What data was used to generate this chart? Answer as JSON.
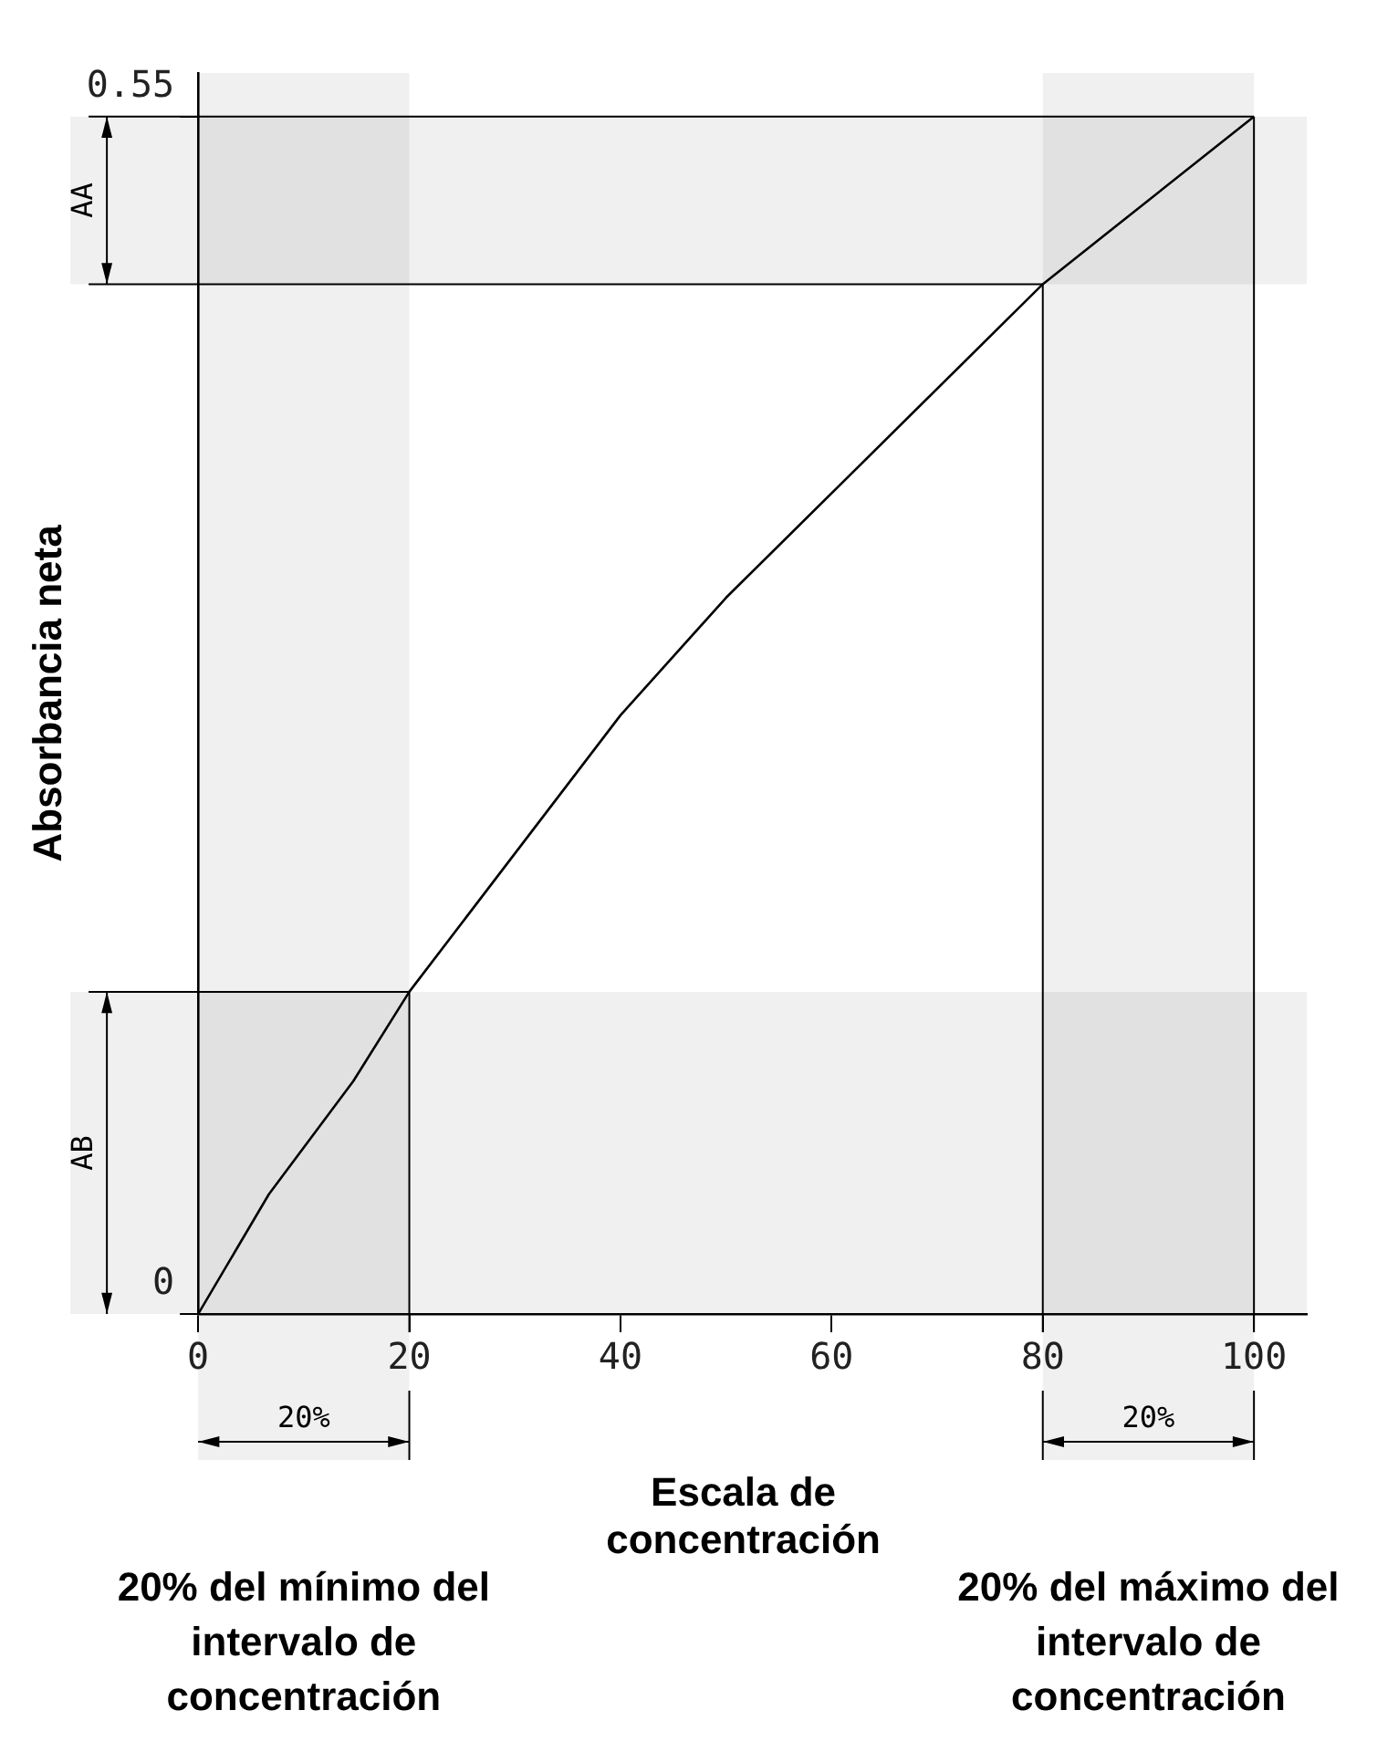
{
  "chart_data": {
    "type": "line",
    "xlabel": "Escala de concentración",
    "ylabel": "Absorbancia neta",
    "x": [
      0,
      6.7,
      14.7,
      20,
      40,
      50,
      80,
      100
    ],
    "series": [
      {
        "color": "#000000",
        "values": [
          0,
          0.055,
          0.107,
          0.148,
          0.275,
          0.329,
          0.473,
          0.55
        ]
      }
    ],
    "xlim": [
      0,
      105
    ],
    "ylim": [
      0,
      0.57
    ],
    "xticks": [
      0,
      20,
      40,
      60,
      80,
      100
    ],
    "yticks": [
      0,
      0.55
    ],
    "grid": false,
    "legend": false,
    "marker": "none",
    "line_style": "solid",
    "ref_lines": [
      {
        "axis": "y",
        "value": 0.148
      },
      {
        "axis": "y",
        "value": 0.473
      },
      {
        "axis": "y",
        "value": 0.55
      },
      {
        "axis": "x",
        "value": 20
      },
      {
        "axis": "x",
        "value": 80
      },
      {
        "axis": "x",
        "value": 100
      }
    ],
    "bands": [
      {
        "axis": "y",
        "from": 0,
        "to": 0.148,
        "label": "AB"
      },
      {
        "axis": "y",
        "from": 0.473,
        "to": 0.55,
        "label": "AA"
      },
      {
        "axis": "x",
        "from": 0,
        "to": 20,
        "label": "20%"
      },
      {
        "axis": "x",
        "from": 80,
        "to": 100,
        "label": "20%"
      }
    ],
    "annotations": [
      "20% del mínimo del intervalo de concentración",
      "20% del máximo del intervalo de concentración"
    ]
  }
}
